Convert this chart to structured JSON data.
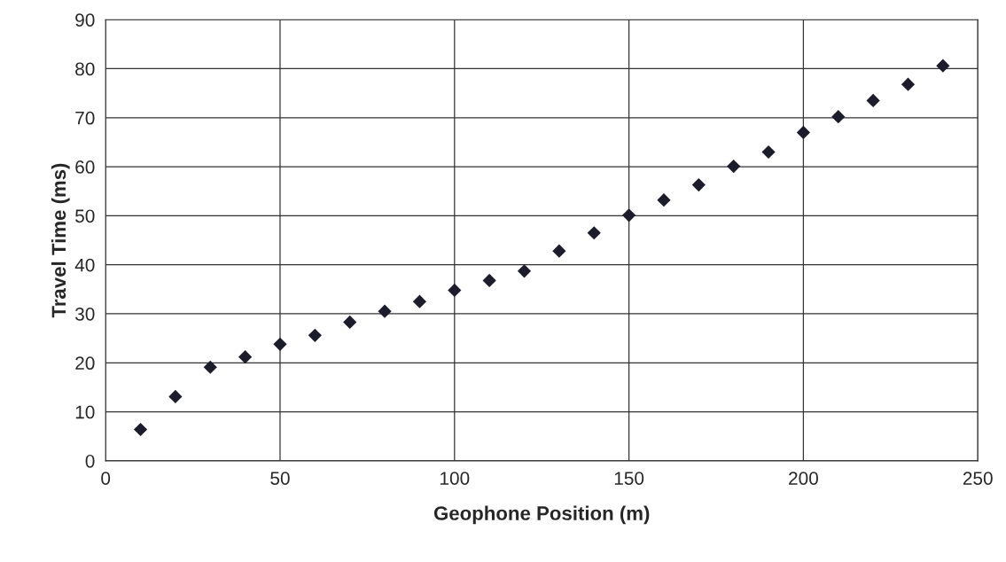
{
  "chart_data": {
    "type": "scatter",
    "xlabel": "Geophone Position (m)",
    "ylabel": "Travel Time (ms)",
    "x": [
      10,
      20,
      30,
      40,
      50,
      60,
      70,
      80,
      90,
      100,
      110,
      120,
      130,
      140,
      150,
      160,
      170,
      180,
      190,
      200,
      210,
      220,
      230,
      240
    ],
    "series": [
      {
        "color": "#1c1c2c",
        "values": [
          6.4,
          13.1,
          19.1,
          21.2,
          23.8,
          25.6,
          28.3,
          30.5,
          32.5,
          34.8,
          36.8,
          38.7,
          42.8,
          46.5,
          50.1,
          53.2,
          56.3,
          60.1,
          63.0,
          67.0,
          70.2,
          73.5,
          76.8,
          80.6
        ]
      }
    ],
    "xlim": [
      0,
      250
    ],
    "xticks": [
      0,
      50,
      100,
      150,
      200,
      250
    ],
    "ylim": [
      0,
      90
    ],
    "yticks": [
      0,
      10,
      20,
      30,
      40,
      50,
      60,
      70,
      80,
      90
    ],
    "grid": true,
    "marker": "diamond"
  }
}
